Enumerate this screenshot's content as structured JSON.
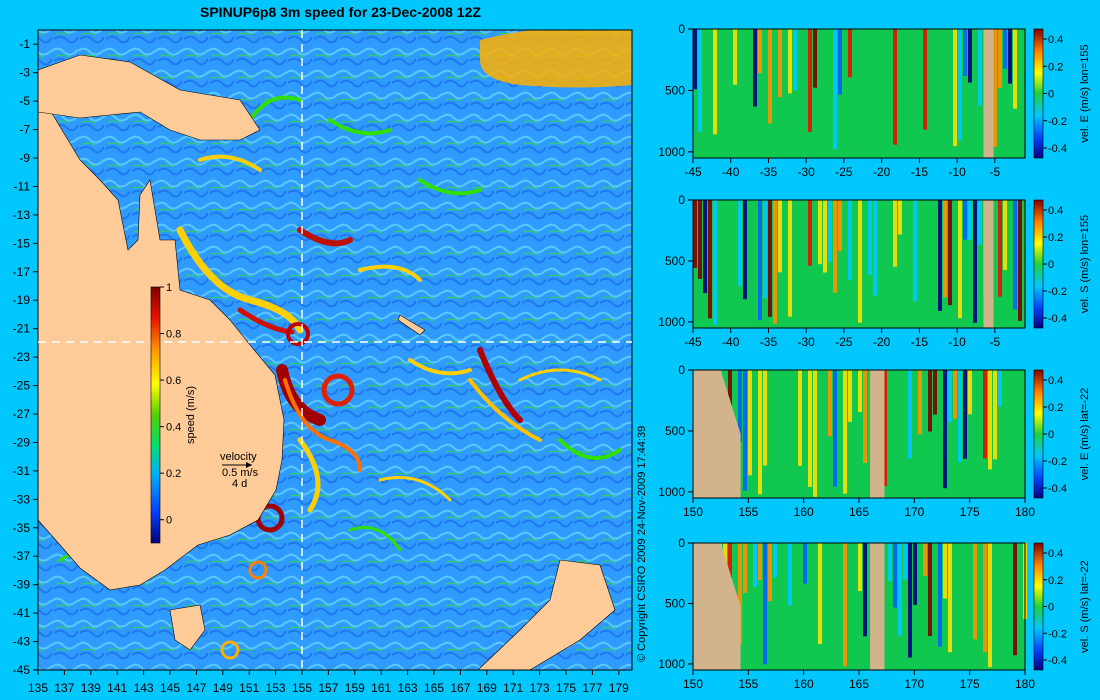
{
  "title": "SPINUP6p8 3m speed for 23-Dec-2008 12Z",
  "copyright": "© Copyright CSIRO 2009   24-Nov-2009 17:44:39",
  "colors": {
    "background": "#00c8ff",
    "land": "#ffcc99",
    "section_land": "#d2b48c"
  },
  "chart_data": [
    {
      "type": "heatmap",
      "name": "map",
      "title": "SPINUP6p8 3m speed for 23-Dec-2008 12Z",
      "x_ticks": [
        "135",
        "137",
        "139",
        "141",
        "143",
        "145",
        "147",
        "149",
        "151",
        "153",
        "155",
        "157",
        "159",
        "161",
        "163",
        "165",
        "167",
        "169",
        "171",
        "173",
        "175",
        "177",
        "179"
      ],
      "y_ticks": [
        "-1",
        "-3",
        "-5",
        "-7",
        "-9",
        "-11",
        "-13",
        "-15",
        "-17",
        "-19",
        "-21",
        "-23",
        "-25",
        "-27",
        "-29",
        "-31",
        "-33",
        "-35",
        "-37",
        "-39",
        "-41",
        "-43",
        "-45"
      ],
      "xlim": [
        135,
        180
      ],
      "ylim": [
        -45,
        0
      ],
      "section_lines": {
        "lon": 155,
        "lat": -22
      },
      "colorbar": {
        "label": "speed (m/s)",
        "ticks": [
          "0",
          "0.2",
          "0.4",
          "0.6",
          "0.8",
          "1"
        ],
        "range": [
          -0.1,
          1
        ]
      },
      "legend": {
        "title": "velocity",
        "scale": "0.5 m/s",
        "interval": "4 d"
      }
    },
    {
      "type": "heatmap",
      "name": "section-east-lon",
      "x_ticks": [
        "-45",
        "-40",
        "-35",
        "-30",
        "-25",
        "-20",
        "-15",
        "-10",
        "-5"
      ],
      "y_ticks": [
        "0",
        "500",
        "1000"
      ],
      "xlim": [
        -45,
        -1
      ],
      "ylim": [
        1050,
        0
      ],
      "colorbar": {
        "label": "vel. E (m/s) lon=155",
        "ticks": [
          "0.4",
          "0.2",
          "0",
          "-0.2",
          "-0.4"
        ]
      }
    },
    {
      "type": "heatmap",
      "name": "section-south-lon",
      "x_ticks": [
        "-45",
        "-40",
        "-35",
        "-30",
        "-25",
        "-20",
        "-15",
        "-10",
        "-5"
      ],
      "y_ticks": [
        "0",
        "500",
        "1000"
      ],
      "xlim": [
        -45,
        -1
      ],
      "ylim": [
        1050,
        0
      ],
      "colorbar": {
        "label": "vel. S (m/s) lon=155",
        "ticks": [
          "0.4",
          "0.2",
          "0",
          "-0.2",
          "-0.4"
        ]
      }
    },
    {
      "type": "heatmap",
      "name": "section-east-lat",
      "x_ticks": [
        "150",
        "155",
        "160",
        "165",
        "170",
        "175",
        "180"
      ],
      "y_ticks": [
        "0",
        "500",
        "1000"
      ],
      "xlim": [
        150,
        180
      ],
      "ylim": [
        1050,
        0
      ],
      "colorbar": {
        "label": "vel. E (m/s) lat=-22",
        "ticks": [
          "0.4",
          "0.2",
          "0",
          "-0.2",
          "-0.4"
        ]
      }
    },
    {
      "type": "heatmap",
      "name": "section-south-lat",
      "x_ticks": [
        "150",
        "155",
        "160",
        "165",
        "170",
        "175",
        "180"
      ],
      "y_ticks": [
        "0",
        "500",
        "1000"
      ],
      "xlim": [
        150,
        180
      ],
      "ylim": [
        1050,
        0
      ],
      "colorbar": {
        "label": "vel. S (m/s) lat=-22",
        "ticks": [
          "0.4",
          "0.2",
          "0",
          "-0.2",
          "-0.4"
        ]
      }
    }
  ]
}
